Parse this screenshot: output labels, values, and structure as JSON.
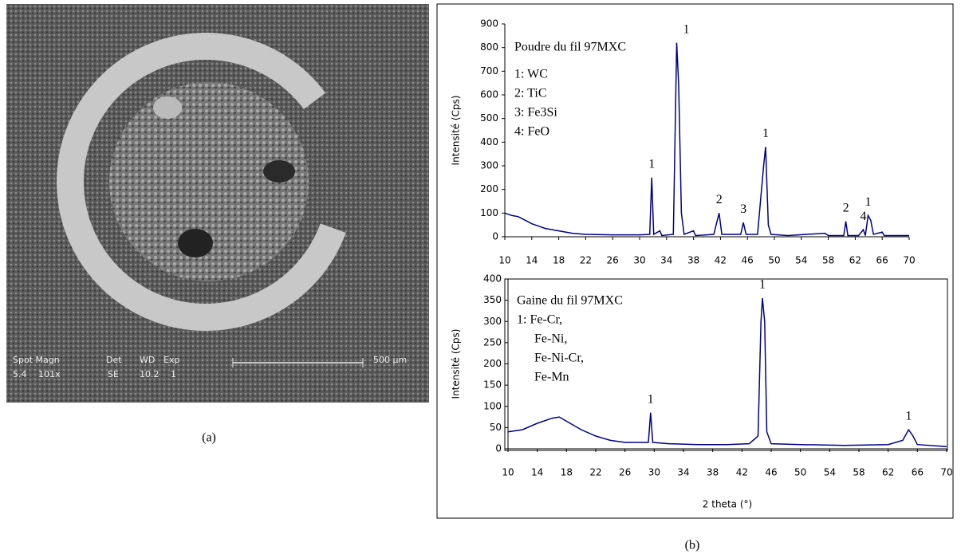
{
  "figure": {
    "panel_a": {
      "caption": "(a)",
      "labels": [
        "Spot Magn",
        "Det",
        "WD",
        "Exp",
        "5.4",
        "101x",
        "SE",
        "10.2",
        "1",
        "500 µm"
      ]
    },
    "panel_b": {
      "caption": "(b)"
    }
  },
  "chart_data": [
    {
      "type": "line",
      "ylabel": "Intensité (Cps)",
      "color": "#00008b",
      "notes": [
        "Poudre du fil 97MXC",
        "1: WC",
        "2: TiC",
        "3: Fe3Si",
        "4: FeO"
      ],
      "peak_labels": [
        {
          "text": "1",
          "x": 31.8,
          "y": 250
        },
        {
          "text": "1",
          "x": 35.5,
          "y": 820
        },
        {
          "text": "2",
          "x": 41.8,
          "y": 100
        },
        {
          "text": "3",
          "x": 45.4,
          "y": 60
        },
        {
          "text": "1",
          "x": 48.7,
          "y": 380
        },
        {
          "text": "2",
          "x": 60.6,
          "y": 65
        },
        {
          "text": "4",
          "x": 63.2,
          "y": 30
        },
        {
          "text": "1",
          "x": 63.9,
          "y": 90
        }
      ],
      "x": [
        10,
        11,
        12,
        13,
        14,
        15,
        16,
        18,
        20,
        22,
        26,
        30,
        31.5,
        31.8,
        32.1,
        33,
        33.3,
        35,
        35.5,
        35.8,
        36.2,
        36.6,
        38,
        38.3,
        41,
        41.8,
        42.2,
        45,
        45.4,
        45.8,
        47.5,
        48.4,
        48.7,
        49.1,
        49.5,
        52,
        57.5,
        58,
        60.3,
        60.6,
        60.9,
        62.5,
        63.2,
        63.5,
        63.9,
        64.3,
        64.7,
        66,
        66.3,
        70
      ],
      "values": [
        100,
        90,
        85,
        70,
        55,
        45,
        35,
        25,
        15,
        10,
        8,
        8,
        10,
        250,
        10,
        25,
        5,
        10,
        820,
        640,
        100,
        10,
        25,
        5,
        10,
        100,
        10,
        10,
        60,
        10,
        10,
        300,
        380,
        50,
        10,
        5,
        15,
        5,
        5,
        65,
        5,
        5,
        30,
        5,
        90,
        70,
        10,
        20,
        5,
        5
      ],
      "xlim": [
        10,
        70
      ],
      "xticks": [
        10,
        14,
        18,
        22,
        26,
        30,
        34,
        38,
        42,
        46,
        50,
        54,
        58,
        62,
        66,
        70
      ],
      "ylim": [
        0,
        900
      ],
      "yticks": [
        0,
        100,
        200,
        300,
        400,
        500,
        600,
        700,
        800,
        900
      ]
    },
    {
      "type": "line",
      "ylabel": "Intensité (Cps)",
      "xlabel": "2 theta (°)",
      "color": "#00008b",
      "notes": [
        "Gaine du fil 97MXC",
        "1: Fe-Cr,",
        "Fe-Ni,",
        "Fe-Ni-Cr,",
        "Fe-Mn"
      ],
      "peak_labels": [
        {
          "text": "1",
          "x": 29.5,
          "y": 85
        },
        {
          "text": "1",
          "x": 44.8,
          "y": 355
        },
        {
          "text": "1",
          "x": 64.8,
          "y": 45
        }
      ],
      "x": [
        10,
        12,
        14,
        16,
        17,
        18,
        20,
        22,
        24,
        26,
        28,
        29.2,
        29.5,
        29.8,
        32,
        36,
        40,
        43,
        44.2,
        44.6,
        44.8,
        45.1,
        45.4,
        46,
        50,
        56,
        62,
        64,
        64.8,
        65.4,
        66,
        70
      ],
      "values": [
        40,
        45,
        60,
        72,
        75,
        65,
        45,
        30,
        20,
        15,
        15,
        15,
        85,
        15,
        12,
        10,
        10,
        12,
        30,
        300,
        355,
        300,
        40,
        12,
        10,
        8,
        10,
        20,
        45,
        30,
        10,
        5
      ],
      "xlim": [
        10,
        70
      ],
      "xticks": [
        10,
        14,
        18,
        22,
        26,
        30,
        34,
        38,
        42,
        46,
        50,
        54,
        58,
        62,
        66,
        70
      ],
      "ylim": [
        0,
        400
      ],
      "yticks": [
        0,
        50,
        100,
        150,
        200,
        250,
        300,
        350,
        400
      ]
    }
  ]
}
